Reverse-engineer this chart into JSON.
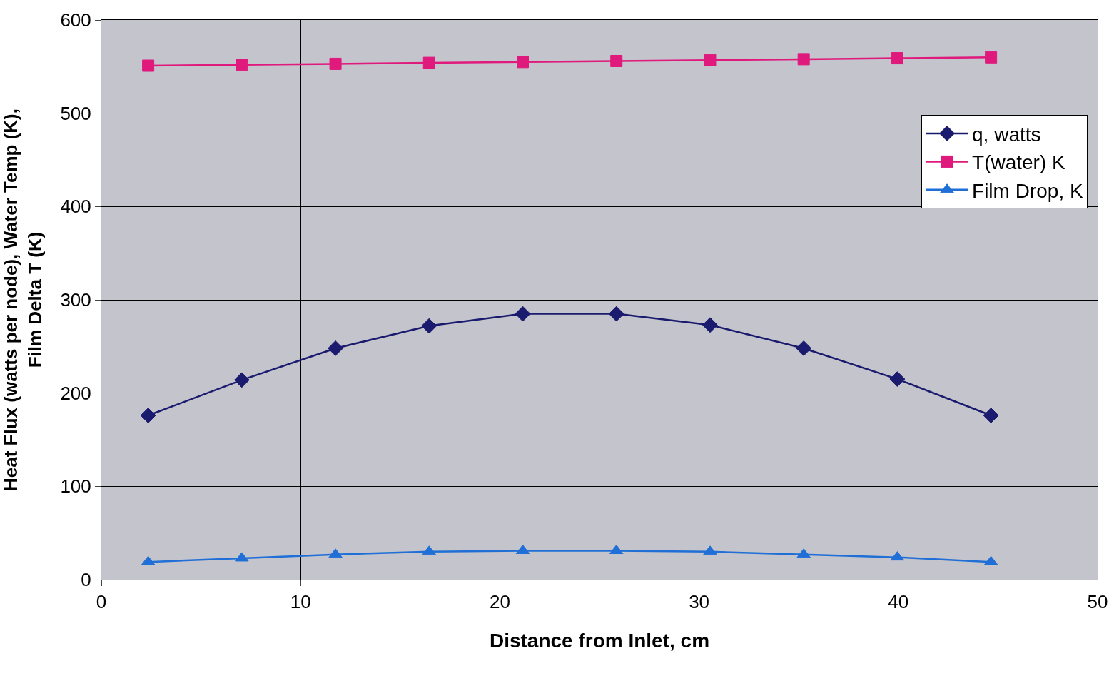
{
  "chart_data": {
    "type": "line",
    "xlabel": "Distance from Inlet, cm",
    "ylabel": "Heat Flux (watts per node), Water Temp (K),\nFilm Delta T (K)",
    "x": [
      2.35,
      7.05,
      11.75,
      16.45,
      21.15,
      25.85,
      30.55,
      35.25,
      39.95,
      44.65
    ],
    "series": [
      {
        "name": "q, watts",
        "color": "#1a1a6e",
        "marker": "diamond",
        "values": [
          176,
          214,
          248,
          272,
          285,
          285,
          273,
          248,
          215,
          176
        ]
      },
      {
        "name": "T(water) K",
        "color": "#e0197d",
        "marker": "square",
        "values": [
          551,
          552,
          553,
          554,
          555,
          556,
          557,
          558,
          559,
          560
        ]
      },
      {
        "name": "Film Drop, K",
        "color": "#1f6fd6",
        "marker": "triangle",
        "values": [
          19,
          23,
          27,
          30,
          31,
          31,
          30,
          27,
          24,
          19
        ]
      }
    ],
    "xlim": [
      0,
      50
    ],
    "xticks": [
      0,
      10,
      20,
      30,
      40,
      50
    ],
    "ylim": [
      0,
      600
    ],
    "yticks": [
      0,
      100,
      200,
      300,
      400,
      500,
      600
    ],
    "grid": true,
    "legend": "top right",
    "line_style": "solid"
  }
}
